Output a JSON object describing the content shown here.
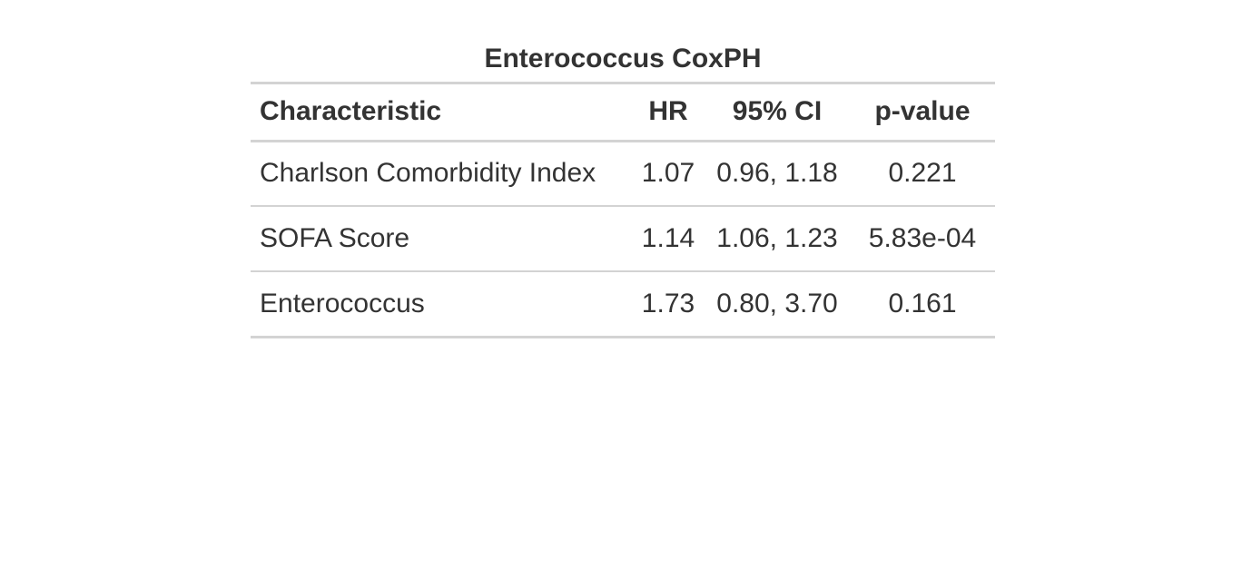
{
  "chart_data": {
    "type": "table",
    "title": "Enterococcus CoxPH",
    "columns": [
      "Characteristic",
      "HR",
      "95% CI",
      "p-value"
    ],
    "rows": [
      {
        "characteristic": "Charlson Comorbidity Index",
        "hr": "1.07",
        "ci": "0.96, 1.18",
        "p": "0.221"
      },
      {
        "characteristic": "SOFA Score",
        "hr": "1.14",
        "ci": "1.06, 1.23",
        "p": "5.83e-04"
      },
      {
        "characteristic": "Enterococcus",
        "hr": "1.73",
        "ci": "0.80, 3.70",
        "p": "0.161"
      }
    ]
  },
  "colors": {
    "text": "#333333",
    "rule": "#d3d3d3",
    "background": "#ffffff"
  }
}
